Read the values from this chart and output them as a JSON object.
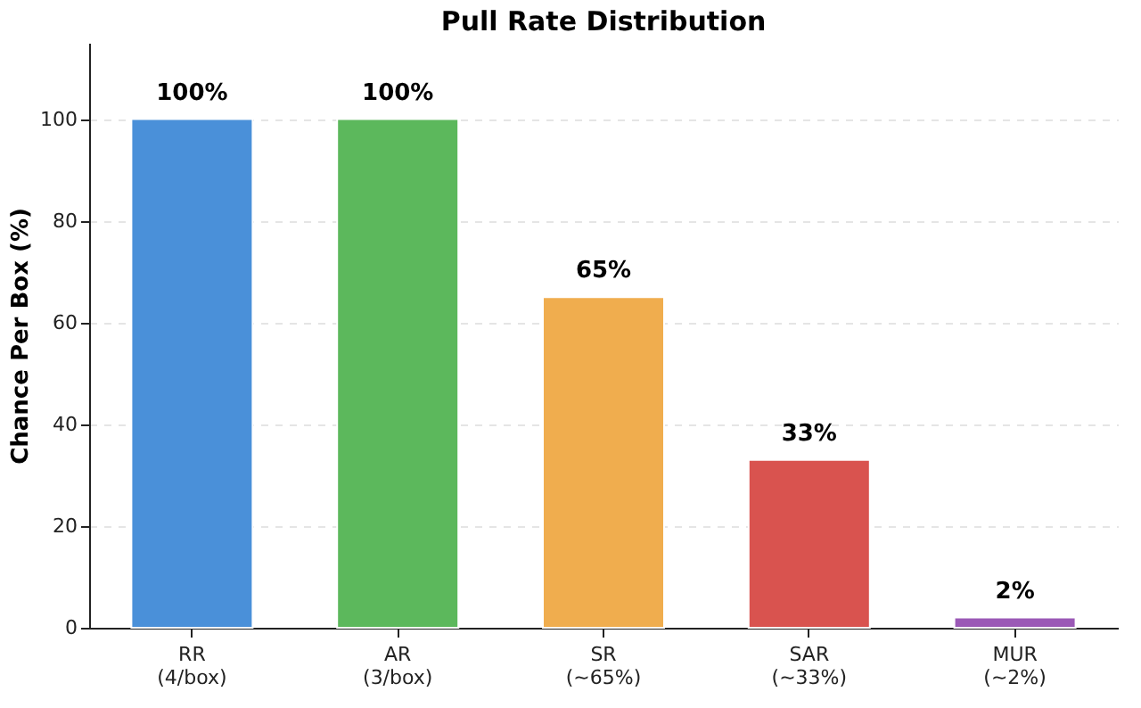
{
  "chart_data": {
    "type": "bar",
    "title": "Pull Rate Distribution",
    "ylabel": "Chance Per Box (%)",
    "categories": [
      "RR\n(4/box)",
      "AR\n(3/box)",
      "SR\n(~65%)",
      "SAR\n(~33%)",
      "MUR\n(~2%)"
    ],
    "values": [
      100,
      100,
      65,
      33,
      2
    ],
    "colors": [
      "#4a90d9",
      "#5cb85c",
      "#f0ad4e",
      "#d9534f",
      "#9b59b6"
    ],
    "value_labels": [
      "100%",
      "100%",
      "65%",
      "33%",
      "2%"
    ],
    "ylim": [
      0,
      115
    ],
    "yticks": [
      0,
      20,
      40,
      60,
      80,
      100
    ],
    "grid": "y"
  }
}
